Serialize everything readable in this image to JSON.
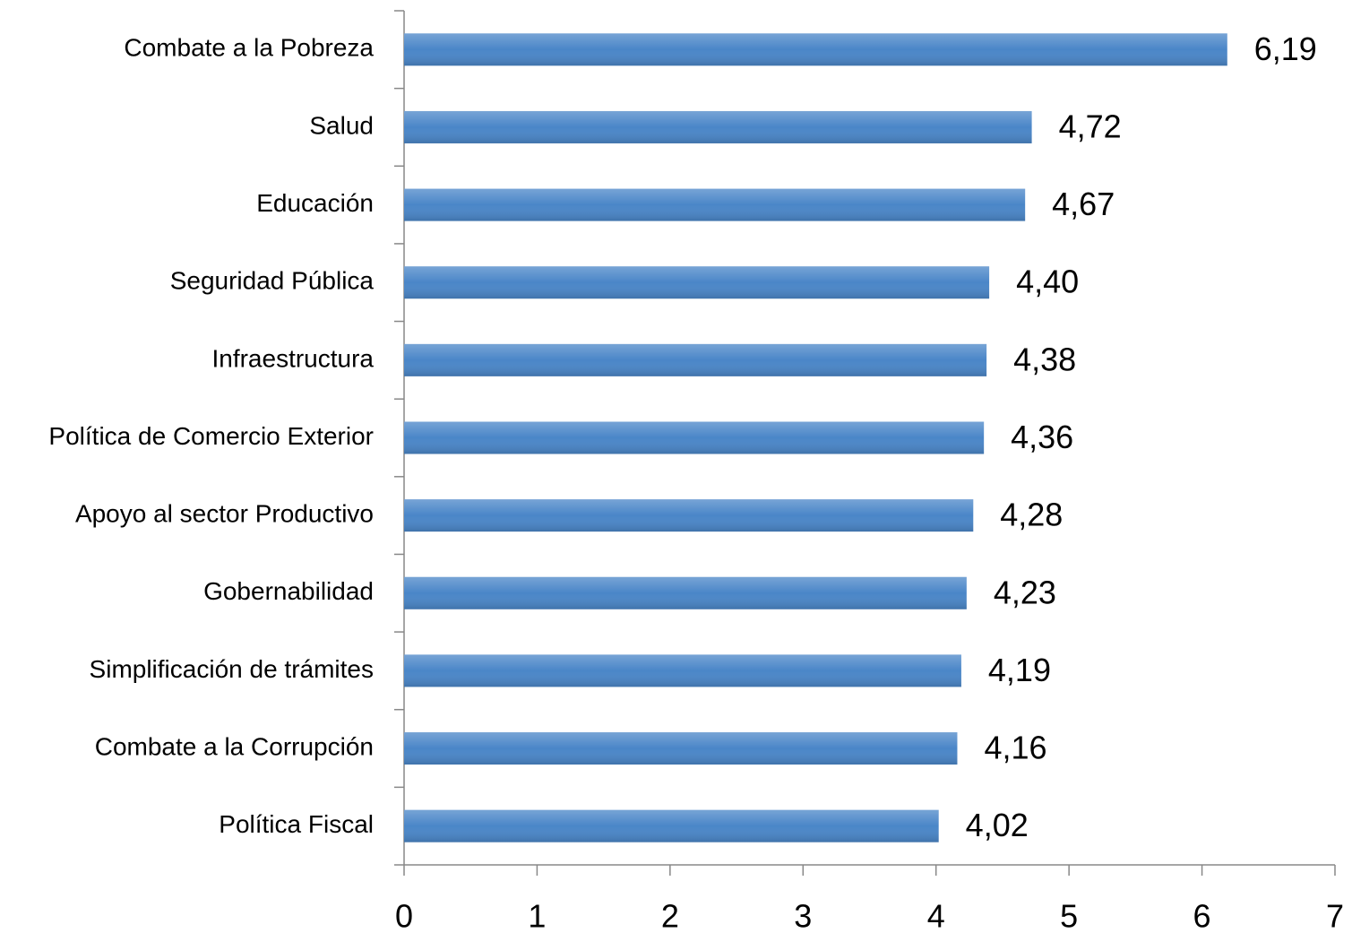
{
  "chart_data": {
    "type": "bar",
    "orientation": "horizontal",
    "categories": [
      "Combate a la Pobreza",
      "Salud",
      "Educación",
      "Seguridad Pública",
      "Infraestructura",
      "Política de Comercio Exterior",
      "Apoyo al sector Productivo",
      "Gobernabilidad",
      "Simplificación de trámites",
      "Combate a la Corrupción",
      "Política Fiscal"
    ],
    "values": [
      6.19,
      4.72,
      4.67,
      4.4,
      4.38,
      4.36,
      4.28,
      4.23,
      4.19,
      4.16,
      4.02
    ],
    "value_labels": [
      "6,19",
      "4,72",
      "4,67",
      "4,40",
      "4,38",
      "4,36",
      "4,28",
      "4,23",
      "4,19",
      "4,16",
      "4,02"
    ],
    "color": "#4a86c8",
    "xlim": [
      0,
      7
    ],
    "xticks": [
      0,
      1,
      2,
      3,
      4,
      5,
      6,
      7
    ],
    "grid": false
  }
}
